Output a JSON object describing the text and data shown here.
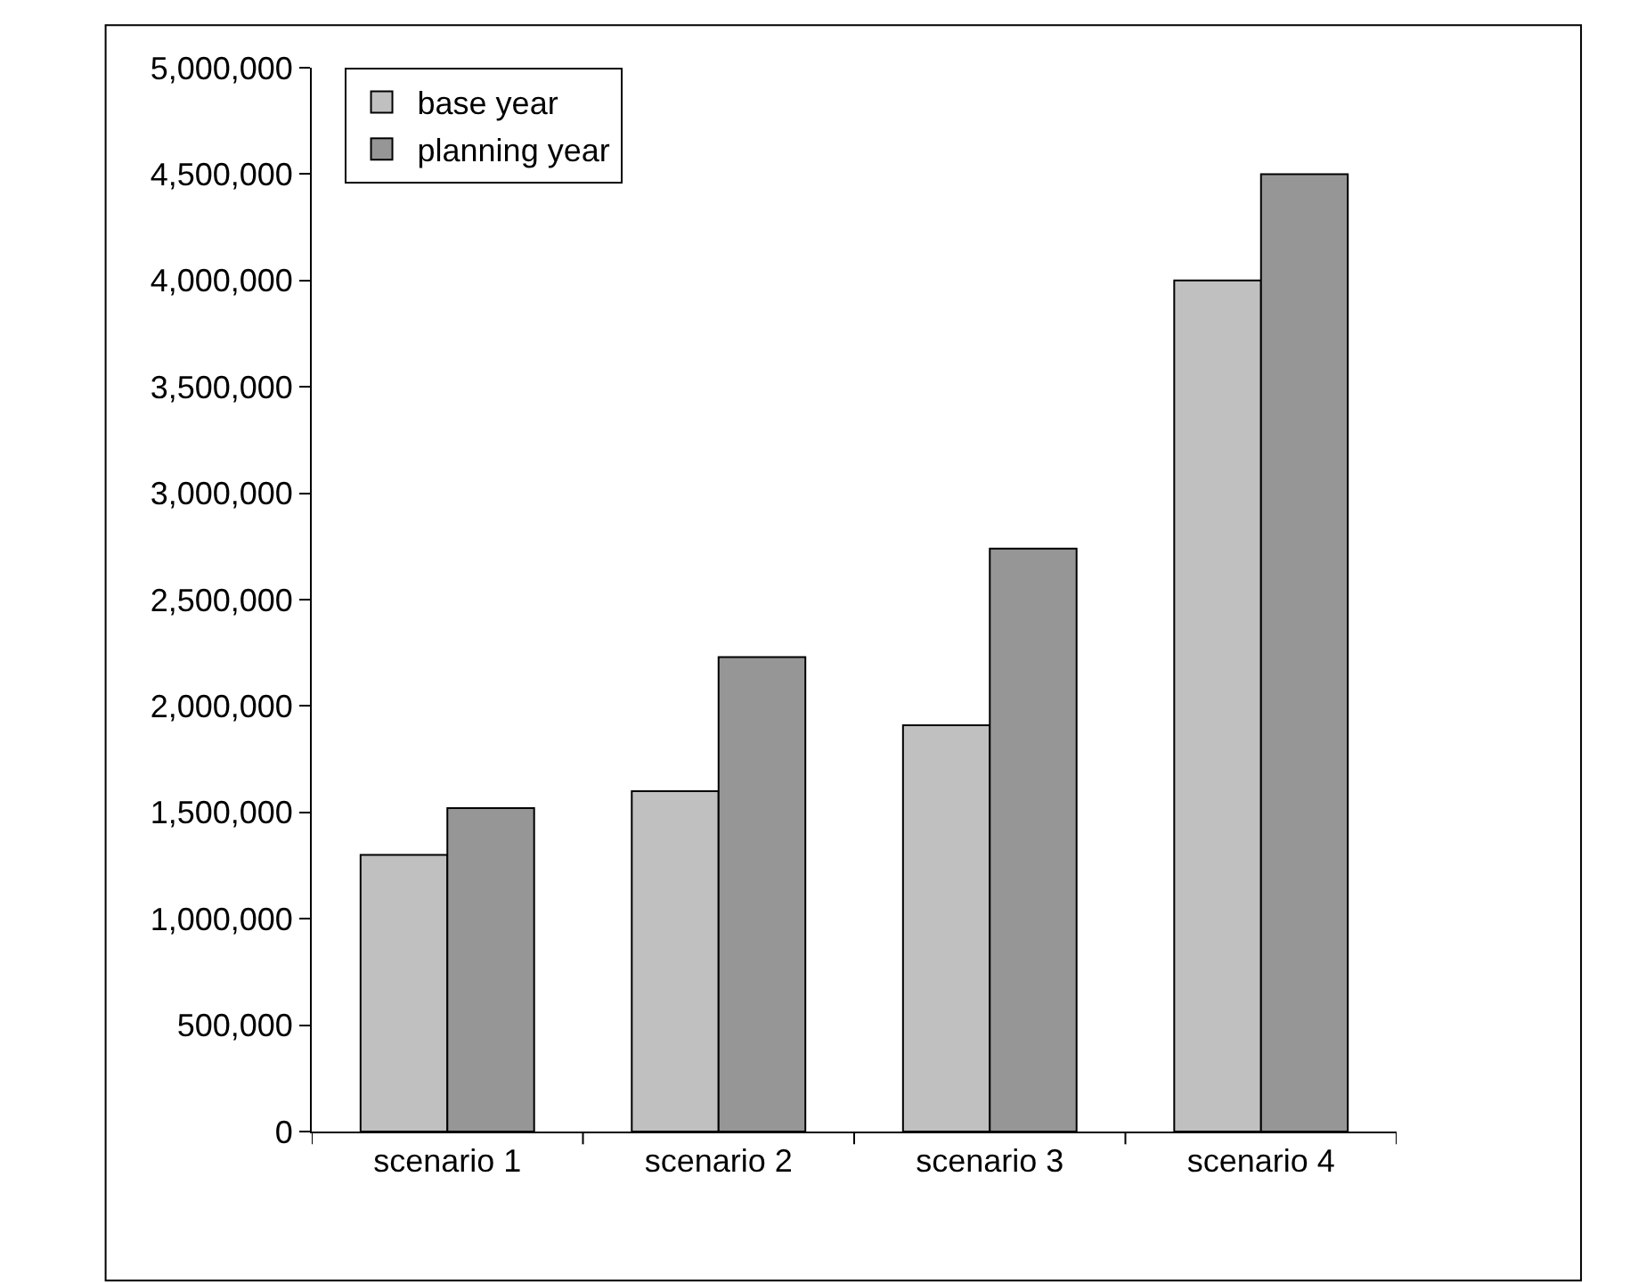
{
  "chart_data": {
    "type": "bar",
    "categories": [
      "scenario 1",
      "scenario 2",
      "scenario 3",
      "scenario 4"
    ],
    "series": [
      {
        "name": "base year",
        "color": "#c0c0c0",
        "values": [
          1300000,
          1600000,
          1910000,
          4000000
        ]
      },
      {
        "name": "planning year",
        "color": "#969696",
        "values": [
          1520000,
          2230000,
          2740000,
          4500000
        ]
      }
    ],
    "ylim": [
      0,
      5000000
    ],
    "yticks": [
      {
        "value": 0,
        "label": "0"
      },
      {
        "value": 500000,
        "label": "500,000"
      },
      {
        "value": 1000000,
        "label": "1,000,000"
      },
      {
        "value": 1500000,
        "label": "1,500,000"
      },
      {
        "value": 2000000,
        "label": "2,000,000"
      },
      {
        "value": 2500000,
        "label": "2,500,000"
      },
      {
        "value": 3000000,
        "label": "3,000,000"
      },
      {
        "value": 3500000,
        "label": "3,500,000"
      },
      {
        "value": 4000000,
        "label": "4,000,000"
      },
      {
        "value": 4500000,
        "label": "4,500,000"
      },
      {
        "value": 5000000,
        "label": "5,000,000"
      }
    ],
    "grid": false,
    "legend": "top left"
  }
}
